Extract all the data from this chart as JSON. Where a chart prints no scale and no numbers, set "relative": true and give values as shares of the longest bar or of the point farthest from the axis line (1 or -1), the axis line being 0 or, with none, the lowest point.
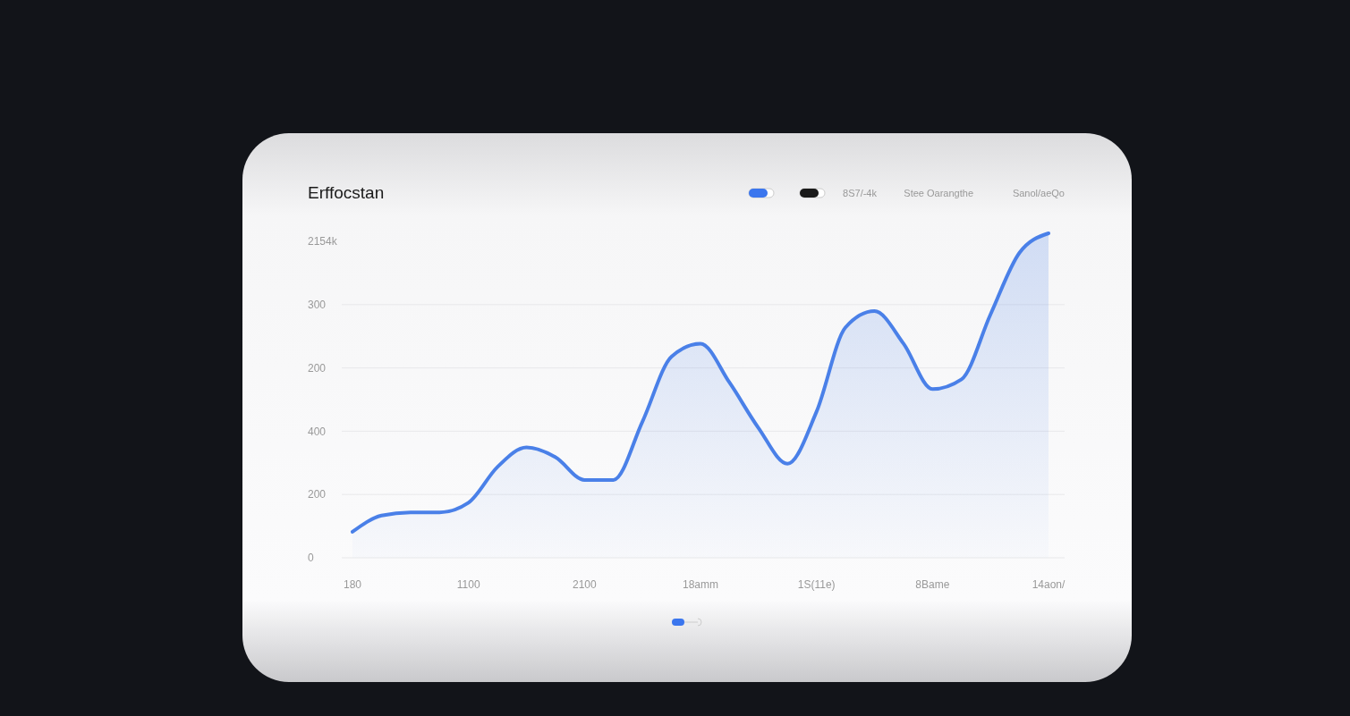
{
  "chart_data": {
    "type": "area",
    "title": "Erffocstan",
    "relative": true,
    "annotations": [
      "8S7/-4k",
      "Stee Oarangthe",
      "Sanol/aeQo",
      "2154k",
      "300",
      "200",
      "400",
      "200",
      "0"
    ],
    "categories": [
      "180",
      null,
      null,
      null,
      "1100",
      null,
      null,
      null,
      "2100",
      null,
      null,
      null,
      "18amm",
      null,
      null,
      null,
      "1S(11e)",
      null,
      null,
      null,
      "8Bame",
      null,
      null,
      null,
      "14aon/"
    ],
    "series": [
      {
        "color": "#4a80e8",
        "values": [
          0.08,
          0.13,
          0.14,
          0.14,
          0.17,
          0.28,
          0.34,
          0.31,
          0.24,
          0.24,
          0.42,
          0.62,
          0.66,
          0.54,
          0.4,
          0.29,
          0.45,
          0.71,
          0.76,
          0.66,
          0.52,
          0.55,
          0.75,
          0.94,
          1
        ]
      }
    ],
    "grid": "y"
  }
}
